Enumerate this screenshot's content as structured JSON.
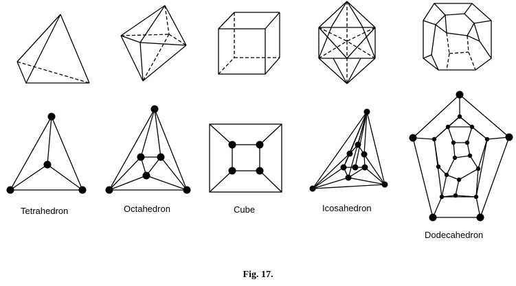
{
  "solids": [
    {
      "key": "tetrahedron",
      "label": "Tetrahedron"
    },
    {
      "key": "octahedron",
      "label": "Octahedron"
    },
    {
      "key": "cube",
      "label": "Cube"
    },
    {
      "key": "icosahedron",
      "label": "Icosahedron"
    },
    {
      "key": "dodecahedron",
      "label": "Dodecahedron"
    }
  ],
  "caption": "Fig. 17."
}
